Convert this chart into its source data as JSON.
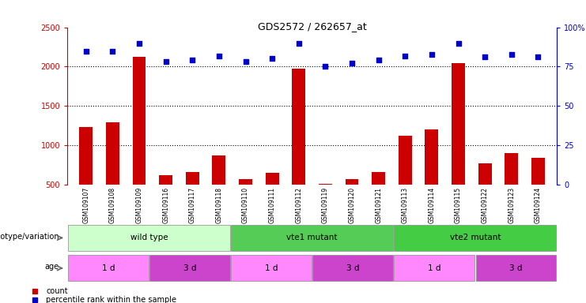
{
  "title": "GDS2572 / 262657_at",
  "samples": [
    "GSM109107",
    "GSM109108",
    "GSM109109",
    "GSM109116",
    "GSM109117",
    "GSM109118",
    "GSM109110",
    "GSM109111",
    "GSM109112",
    "GSM109119",
    "GSM109120",
    "GSM109121",
    "GSM109113",
    "GSM109114",
    "GSM109115",
    "GSM109122",
    "GSM109123",
    "GSM109124"
  ],
  "counts": [
    1230,
    1290,
    2130,
    620,
    660,
    870,
    570,
    650,
    1970,
    510,
    570,
    660,
    1120,
    1200,
    2040,
    770,
    900,
    840
  ],
  "percentiles": [
    85,
    85,
    90,
    78,
    79,
    82,
    78,
    80,
    90,
    75,
    77,
    79,
    82,
    83,
    90,
    81,
    83,
    81
  ],
  "ylim_left": [
    500,
    2500
  ],
  "ylim_right": [
    0,
    100
  ],
  "yticks_left": [
    500,
    1000,
    1500,
    2000,
    2500
  ],
  "yticks_right": [
    0,
    25,
    50,
    75,
    100
  ],
  "ytick_labels_right": [
    "0",
    "25",
    "50",
    "75",
    "100%"
  ],
  "bar_color": "#cc0000",
  "dot_color": "#0000cc",
  "genotype_groups": [
    {
      "label": "wild type",
      "start": 0,
      "end": 6,
      "color": "#ccffcc"
    },
    {
      "label": "vte1 mutant",
      "start": 6,
      "end": 12,
      "color": "#55cc55"
    },
    {
      "label": "vte2 mutant",
      "start": 12,
      "end": 18,
      "color": "#44cc44"
    }
  ],
  "age_groups": [
    {
      "label": "1 d",
      "start": 0,
      "end": 3,
      "color": "#ff88ff"
    },
    {
      "label": "3 d",
      "start": 3,
      "end": 6,
      "color": "#cc44cc"
    },
    {
      "label": "1 d",
      "start": 6,
      "end": 9,
      "color": "#ff88ff"
    },
    {
      "label": "3 d",
      "start": 9,
      "end": 12,
      "color": "#cc44cc"
    },
    {
      "label": "1 d",
      "start": 12,
      "end": 15,
      "color": "#ff88ff"
    },
    {
      "label": "3 d",
      "start": 15,
      "end": 18,
      "color": "#cc44cc"
    }
  ],
  "legend_items": [
    {
      "label": "count",
      "color": "#cc0000"
    },
    {
      "label": "percentile rank within the sample",
      "color": "#0000cc"
    }
  ],
  "genotype_label": "genotype/variation",
  "age_label": "age",
  "background_color": "#ffffff",
  "xtick_bg_color": "#cccccc",
  "grid_color": "#000000",
  "grid_levels": [
    1000,
    1500,
    2000
  ],
  "bar_bottom": 500
}
